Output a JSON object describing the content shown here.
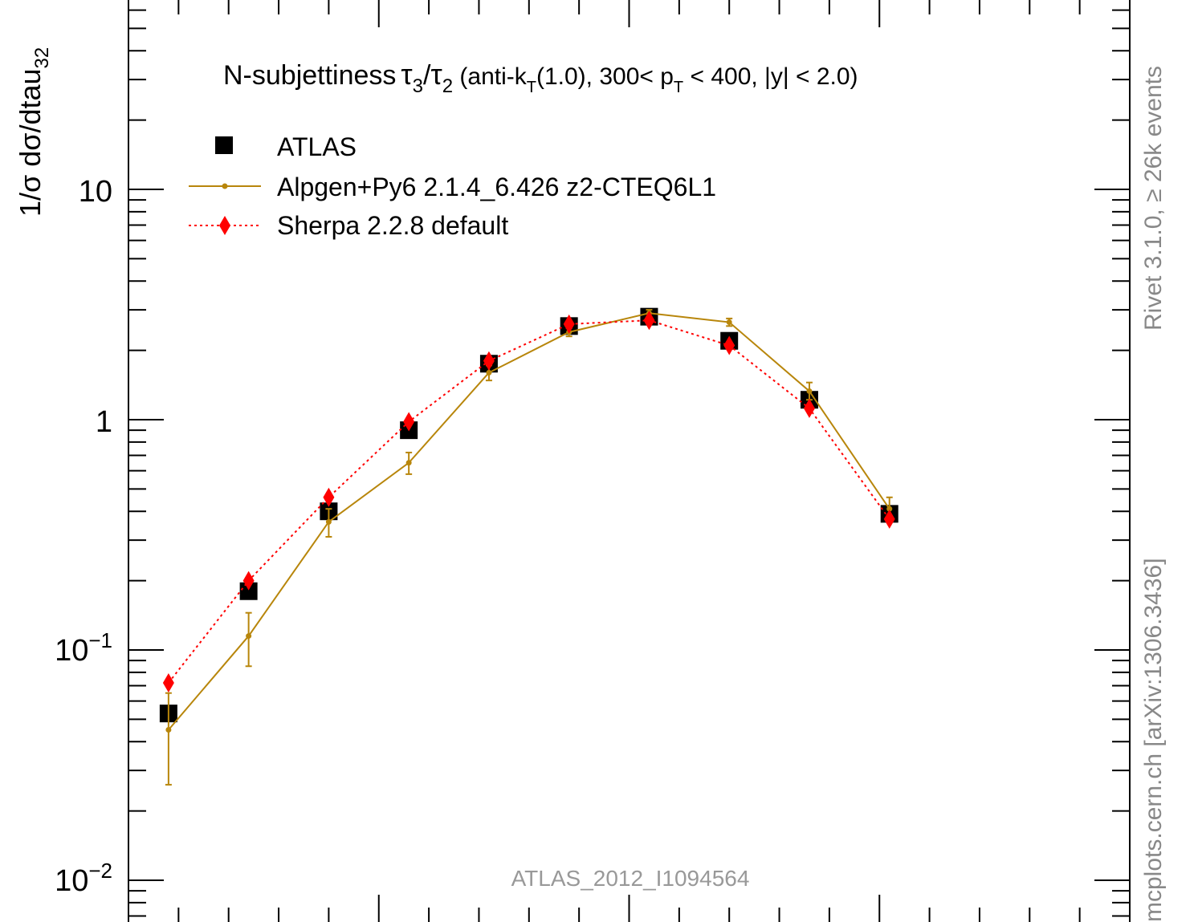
{
  "chart_data": {
    "type": "line",
    "title": "N-subjettiness",
    "title_math": {
      "tau": "τ",
      "sub3": "3",
      "slash": "/",
      "sub2": "2",
      "p1": " (anti-k",
      "subT": "T",
      "p2": "(1.0), 300< p",
      "p3": " < 400, |y| < 2.0)"
    },
    "ylabel": "1/σ dσ/dtau",
    "ylabel_sub": "32",
    "xlim": [
      0.0,
      1.0
    ],
    "ylim": [
      0.007,
      50
    ],
    "yscale": "log",
    "ytick_labels": {
      "t10": "10",
      "t1": "1",
      "tm1_base": "10",
      "tm1_exp": "−1",
      "tm2_base": "10",
      "tm2_exp": "−2"
    },
    "x": [
      0.04,
      0.12,
      0.2,
      0.28,
      0.36,
      0.44,
      0.52,
      0.6,
      0.68,
      0.76
    ],
    "series": [
      {
        "name": "ATLAS",
        "color": "#000000",
        "marker": "square",
        "values": [
          0.053,
          0.18,
          0.4,
          0.9,
          1.75,
          2.55,
          2.8,
          2.2,
          1.22,
          0.39
        ]
      },
      {
        "name": "Alpgen+Py6 2.1.4_6.426 z2-CTEQ6L1",
        "color": "#b8860b",
        "marker": "dot",
        "values": [
          0.045,
          0.115,
          0.36,
          0.65,
          1.6,
          2.4,
          2.9,
          2.65,
          1.33,
          0.41
        ],
        "err_low": [
          0.026,
          0.085,
          0.31,
          0.58,
          1.48,
          2.3,
          2.8,
          2.55,
          1.22,
          0.37
        ],
        "err_high": [
          0.065,
          0.145,
          0.41,
          0.72,
          1.72,
          2.5,
          3.0,
          2.75,
          1.45,
          0.46
        ]
      },
      {
        "name": "Sherpa 2.2.8 default",
        "color": "#ff0000",
        "marker": "diamond",
        "linestyle": "dotted",
        "values": [
          0.072,
          0.2,
          0.46,
          0.98,
          1.8,
          2.6,
          2.7,
          2.1,
          1.12,
          0.37
        ]
      }
    ],
    "legend_position": "top-left",
    "annotation": "ATLAS_2012_I1094564",
    "side_text": {
      "rivet": "Rivet 3.1.0, ≥ 26k events",
      "mcplots": "mcplots.cern.ch [arXiv:1306.3436]"
    }
  }
}
